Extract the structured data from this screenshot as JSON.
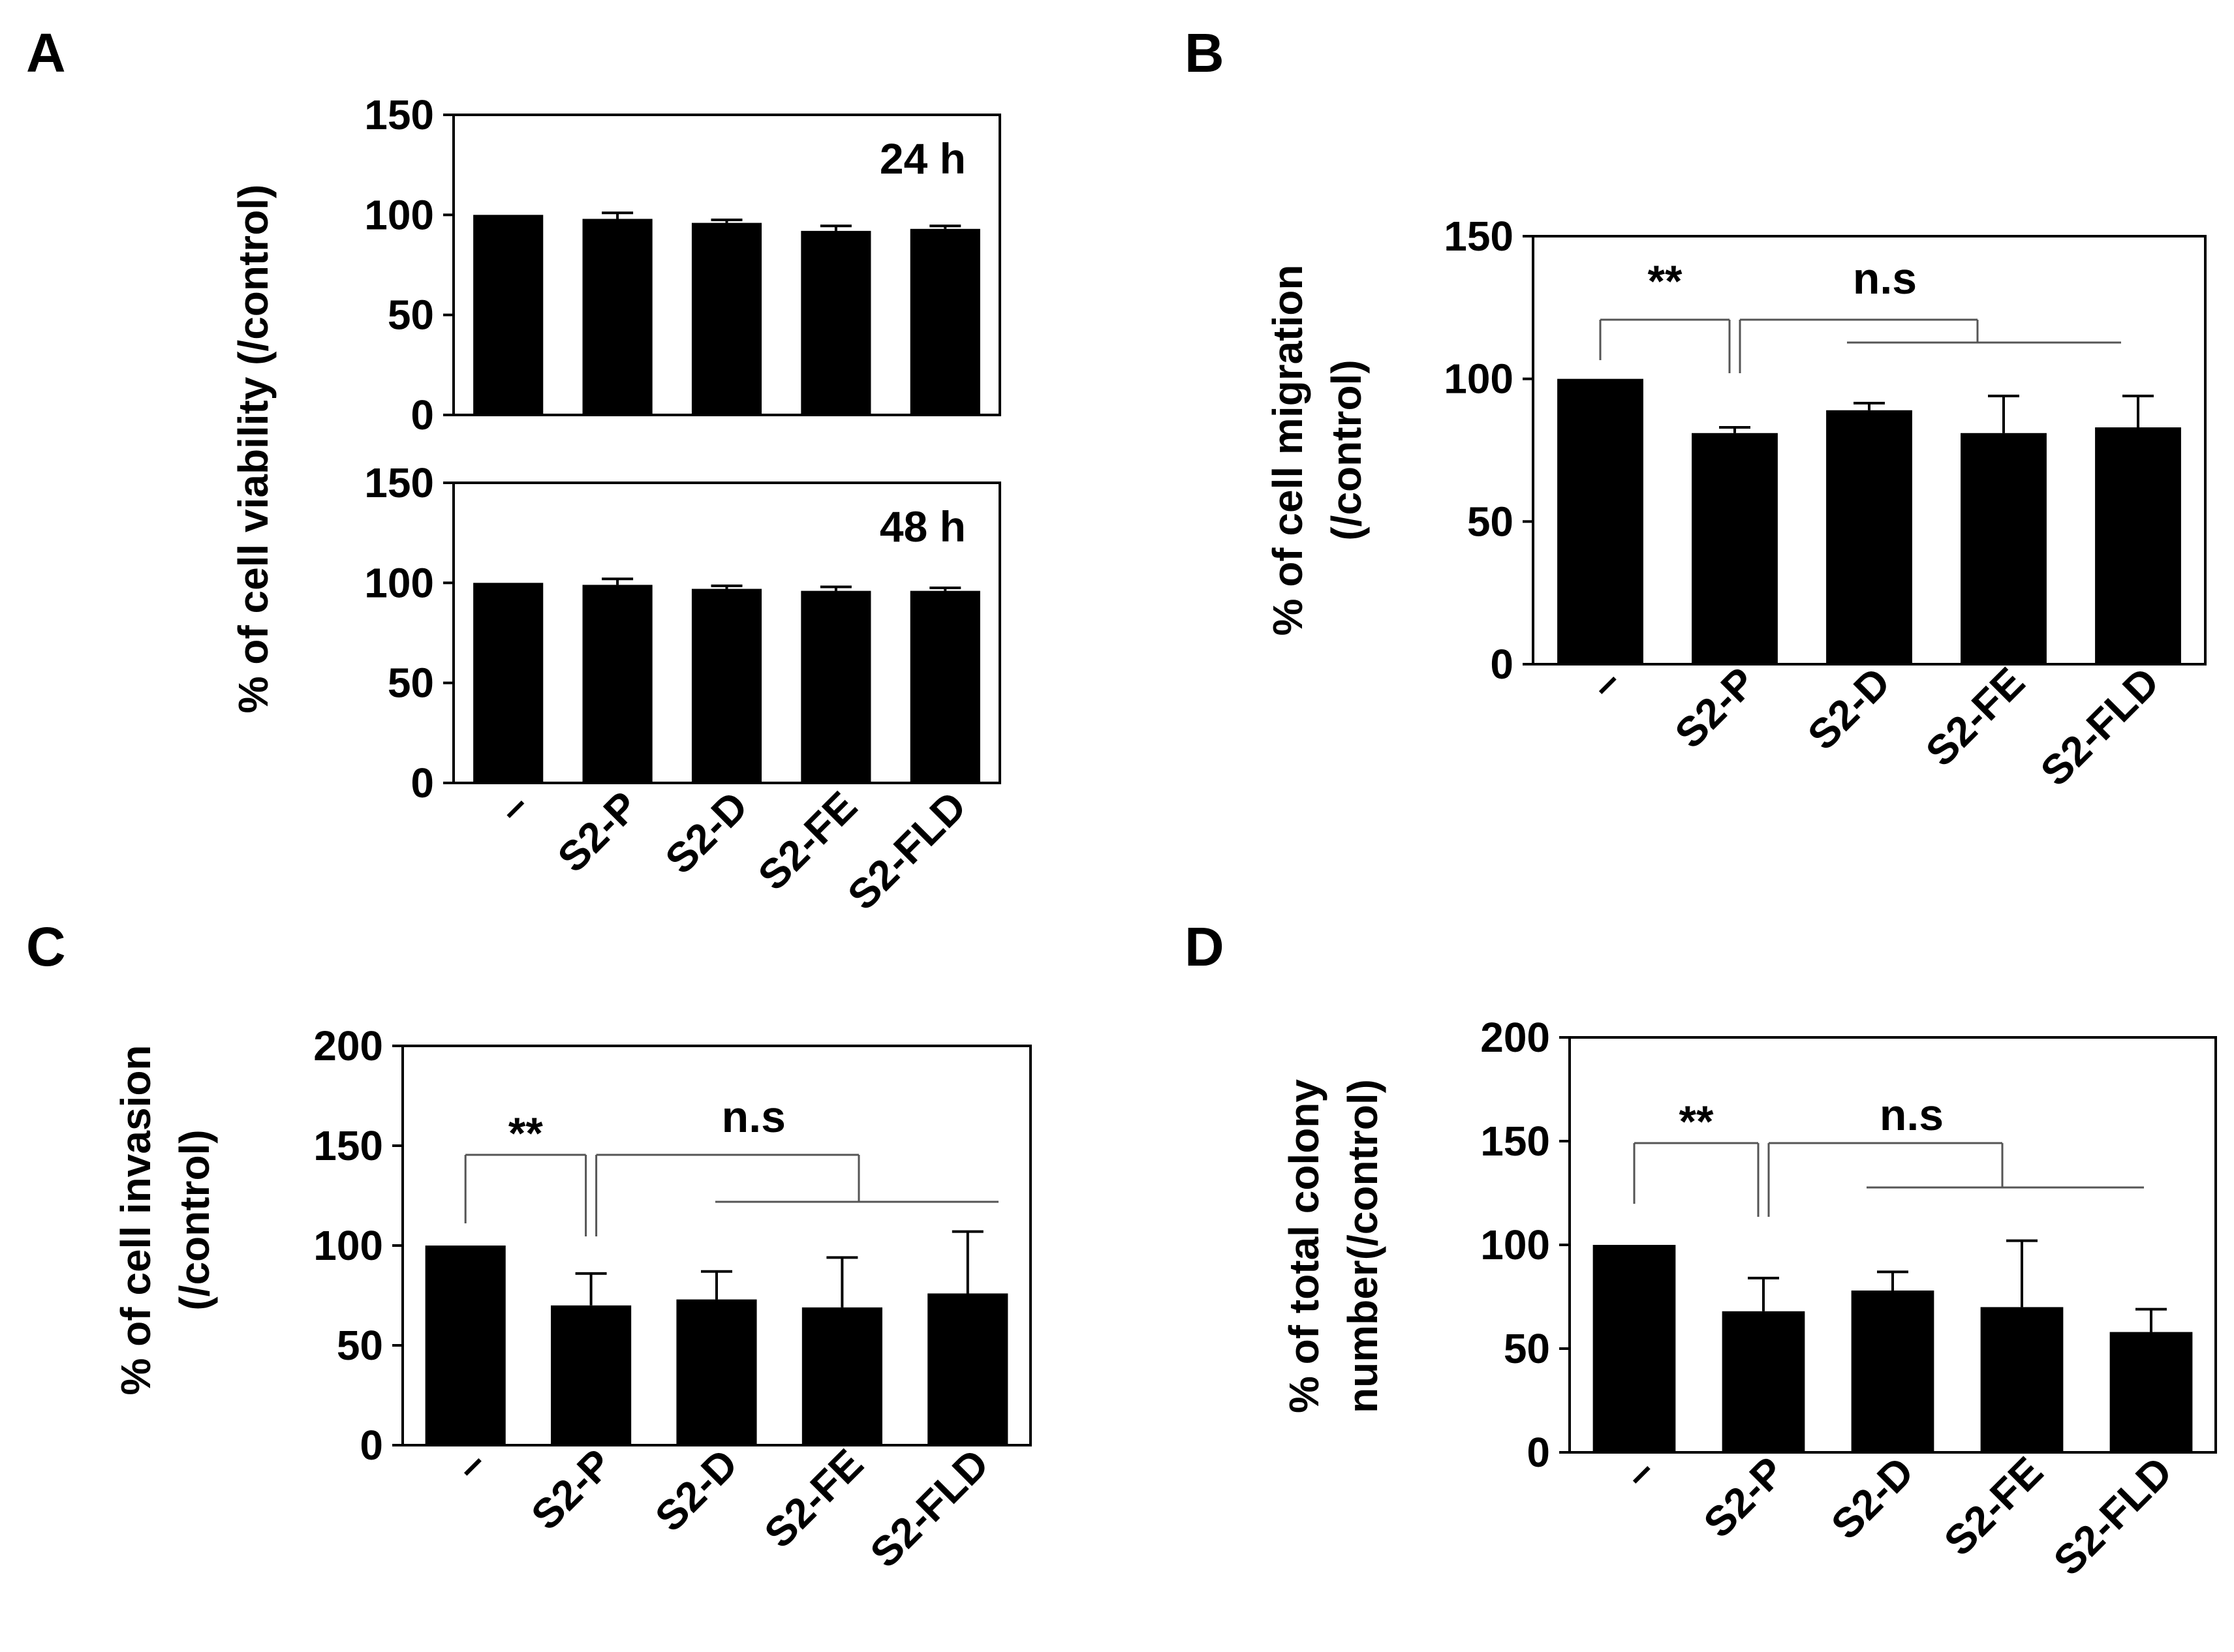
{
  "chart_data": [
    {
      "panel": "A",
      "type": "bar",
      "ylabel": "% of cell viability (/control)",
      "categories": [
        "–",
        "S2-P",
        "S2-D",
        "S2-FE",
        "S2-FLD"
      ],
      "subplots": [
        {
          "label": "24 h",
          "ylim": [
            0,
            150
          ],
          "yticks": [
            0,
            50,
            100,
            150
          ],
          "values": [
            100,
            98,
            96,
            92,
            93
          ],
          "errors": [
            0,
            3,
            1.5,
            2.5,
            1.5
          ]
        },
        {
          "label": "48 h",
          "ylim": [
            0,
            150
          ],
          "yticks": [
            0,
            50,
            100,
            150
          ],
          "values": [
            100,
            99,
            97,
            96,
            96
          ],
          "errors": [
            0,
            3,
            1.5,
            2,
            1.5
          ]
        }
      ]
    },
    {
      "panel": "B",
      "type": "bar",
      "ylabel": [
        "% of cell migration",
        "(/control)"
      ],
      "categories": [
        "–",
        "S2-P",
        "S2-D",
        "S2-FE",
        "S2-FLD"
      ],
      "ylim": [
        0,
        150
      ],
      "yticks": [
        0,
        50,
        100,
        150
      ],
      "values": [
        100,
        81,
        89,
        81,
        83
      ],
      "errors": [
        0,
        2,
        2.5,
        13,
        11
      ],
      "annotations": [
        {
          "text": "**",
          "from": 0,
          "to": 1
        },
        {
          "text": "n.s",
          "from": 1,
          "to": 4
        }
      ]
    },
    {
      "panel": "C",
      "type": "bar",
      "ylabel": [
        "% of cell invasion",
        "(/control)"
      ],
      "categories": [
        "–",
        "S2-P",
        "S2-D",
        "S2-FE",
        "S2-FLD"
      ],
      "ylim": [
        0,
        200
      ],
      "yticks": [
        0,
        50,
        100,
        150,
        200
      ],
      "values": [
        100,
        70,
        73,
        69,
        76
      ],
      "errors": [
        0,
        16,
        14,
        25,
        31
      ],
      "annotations": [
        {
          "text": "**",
          "from": 0,
          "to": 1
        },
        {
          "text": "n.s",
          "from": 1,
          "to": 4
        }
      ]
    },
    {
      "panel": "D",
      "type": "bar",
      "ylabel": [
        "% of total colony",
        "number(/control)"
      ],
      "categories": [
        "–",
        "S2-P",
        "S2-D",
        "S2-FE",
        "S2-FLD"
      ],
      "ylim": [
        0,
        200
      ],
      "yticks": [
        0,
        50,
        100,
        150,
        200
      ],
      "values": [
        100,
        68,
        78,
        70,
        58
      ],
      "errors": [
        0,
        16,
        9,
        32,
        11
      ],
      "annotations": [
        {
          "text": "**",
          "from": 0,
          "to": 1
        },
        {
          "text": "n.s",
          "from": 1,
          "to": 4
        }
      ]
    }
  ]
}
